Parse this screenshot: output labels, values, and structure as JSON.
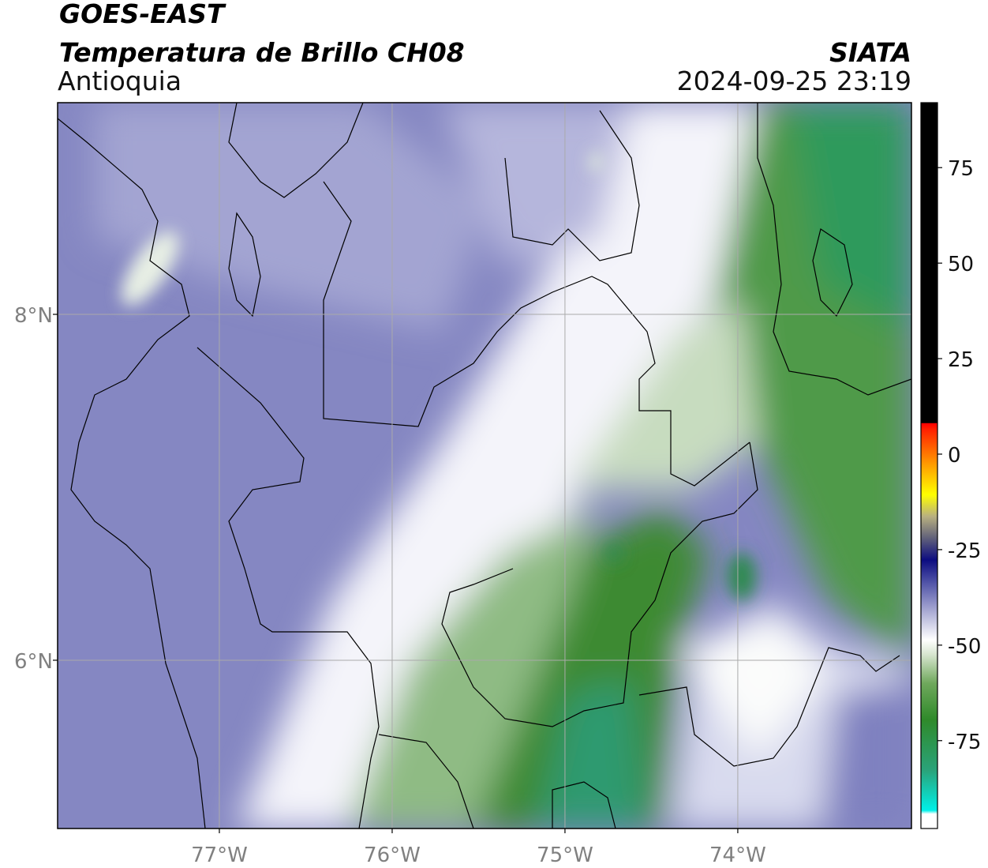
{
  "chart_data": {
    "type": "map",
    "title": "GOES-EAST",
    "subtitle": "Temperatura de Brillo CH08",
    "region": "Antioquia",
    "source": "SIATA",
    "timestamp": "2024-09-25 23:19",
    "xlim": [
      -77.936,
      -72.995
    ],
    "ylim": [
      5.027,
      9.224
    ],
    "xticks": [
      {
        "value": -77,
        "label": "77°W"
      },
      {
        "value": -76,
        "label": "76°W"
      },
      {
        "value": -75,
        "label": "75°W"
      },
      {
        "value": -74,
        "label": "74°W"
      }
    ],
    "yticks": [
      {
        "value": 6,
        "label": "6°N"
      },
      {
        "value": 8,
        "label": "8°N"
      }
    ],
    "grid": true,
    "colorbar": {
      "lim": [
        -98,
        92
      ],
      "ticks": [
        -75,
        -50,
        -25,
        0,
        25,
        50,
        75
      ]
    }
  }
}
